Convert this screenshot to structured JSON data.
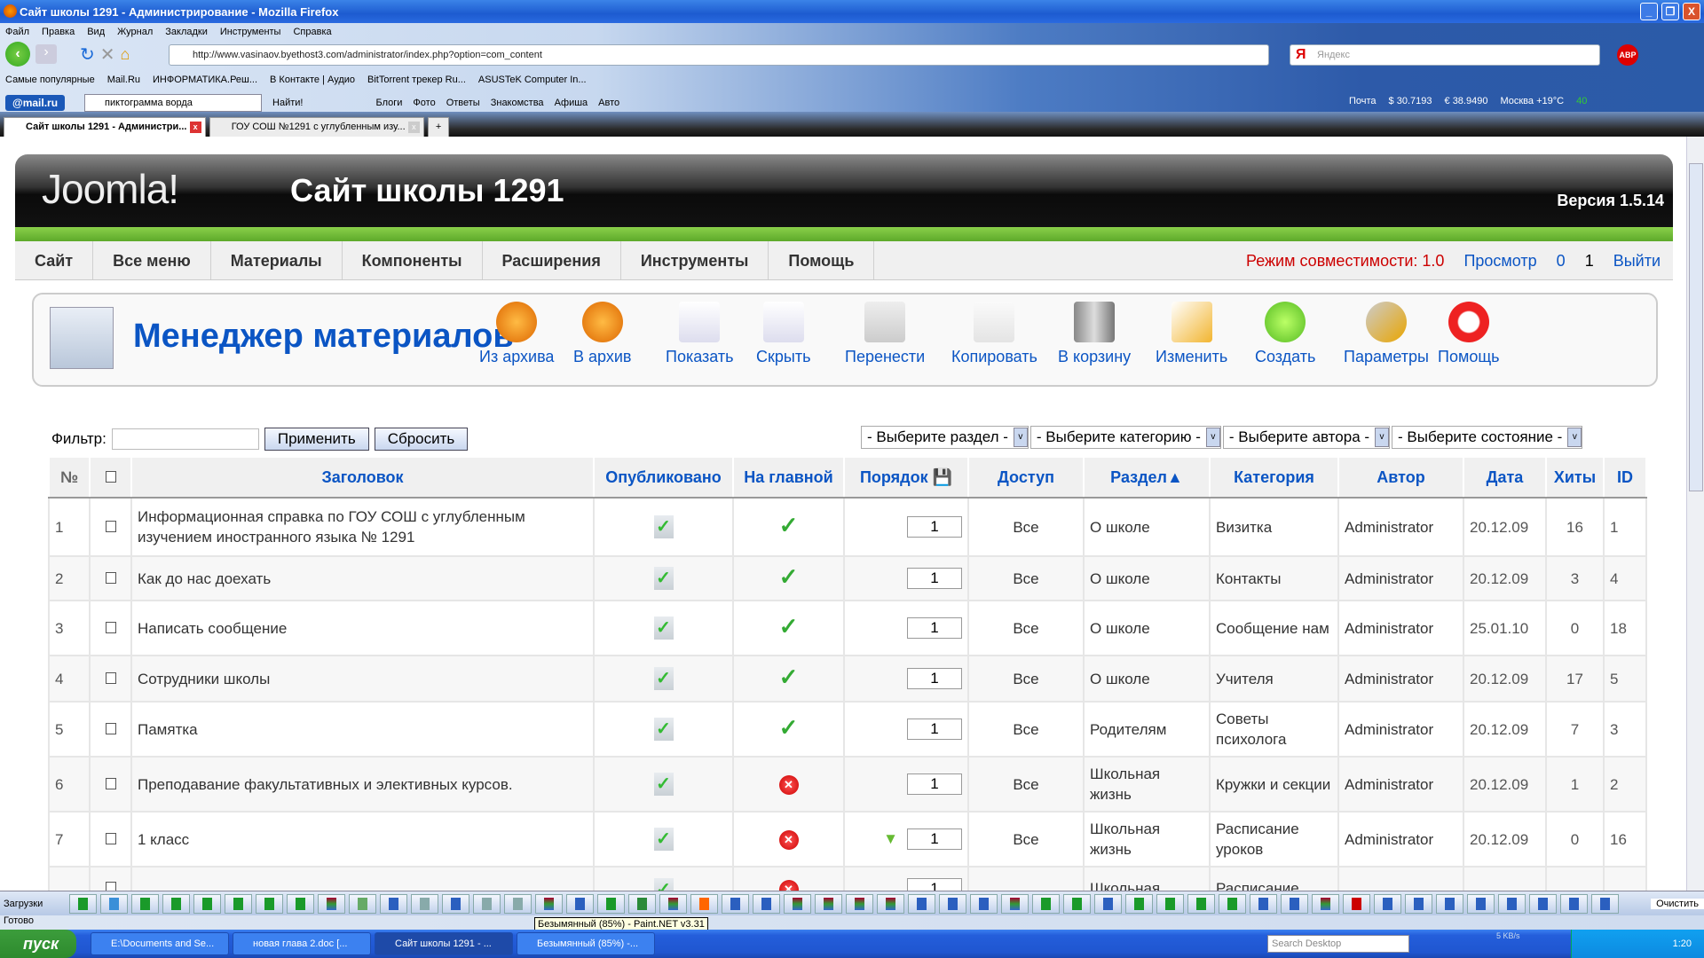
{
  "window": {
    "title": "Сайт школы 1291 - Администрирование - Mozilla Firefox",
    "min": "_",
    "max": "❐",
    "close": "X"
  },
  "menu": [
    "Файл",
    "Правка",
    "Вид",
    "Журнал",
    "Закладки",
    "Инструменты",
    "Справка"
  ],
  "nav": {
    "url": "http://www.vasinaov.byethost3.com/administrator/index.php?option=com_content",
    "search_placeholder": "Яндекс",
    "search_engine": "Я",
    "abp": "ABP"
  },
  "bookmarks": [
    "Самые популярные",
    "Mail.Ru",
    "ИНФОРМАТИКА.Реш...",
    "В Контакте | Аудио",
    "BitTorrent трекер Ru...",
    "ASUSTeK Computer In..."
  ],
  "mailbar": {
    "logo": "@mail.ru",
    "query": "пиктограмма ворда",
    "find": "Найти!",
    "links": [
      "Блоги",
      "Фото",
      "Ответы",
      "Знакомства",
      "Афиша",
      "Авто"
    ]
  },
  "infobar": {
    "mail": "Почта",
    "usd": "30.7193",
    "eur": "38.9490",
    "weather": "Москва +19°C",
    "traffic": "40"
  },
  "tabs": [
    {
      "label": "Сайт школы 1291 - Администри...",
      "active": true
    },
    {
      "label": "ГОУ СОШ №1291 с углубленным изу...",
      "active": false
    }
  ],
  "joomla": {
    "logo": "Joomla!",
    "site": "Сайт школы 1291",
    "version": "Версия 1.5.14",
    "menu": [
      "Сайт",
      "Все меню",
      "Материалы",
      "Компоненты",
      "Расширения",
      "Инструменты",
      "Помощь"
    ],
    "compat": "Режим совместимости: 1.0",
    "preview": "Просмотр",
    "messages": "0",
    "users": "1",
    "logout": "Выйти"
  },
  "toolbar": {
    "title": "Менеджер материалов",
    "buttons": [
      {
        "label": "Из архива",
        "icon": "unarchive-icon"
      },
      {
        "label": "В архив",
        "icon": "archive-icon"
      },
      {
        "label": "Показать",
        "icon": "publish-icon"
      },
      {
        "label": "Скрыть",
        "icon": "unpublish-icon"
      },
      {
        "label": "Перенести",
        "icon": "move-icon"
      },
      {
        "label": "Копировать",
        "icon": "copy-icon"
      },
      {
        "label": "В корзину",
        "icon": "trash-icon"
      },
      {
        "label": "Изменить",
        "icon": "edit-icon"
      },
      {
        "label": "Создать",
        "icon": "new-icon"
      },
      {
        "label": "Параметры",
        "icon": "params-icon"
      },
      {
        "label": "Помощь",
        "icon": "help-icon"
      }
    ]
  },
  "filter": {
    "label": "Фильтр:",
    "value": "",
    "apply": "Применить",
    "reset": "Сбросить",
    "selects": [
      "- Выберите раздел -",
      "- Выберите категорию -",
      "- Выберите автора -",
      "- Выберите состояние -"
    ]
  },
  "table": {
    "headers": [
      "№",
      "",
      "Заголовок",
      "Опубликовано",
      "На главной",
      "Порядок",
      "Доступ",
      "Раздел▲",
      "Категория",
      "Автор",
      "Дата",
      "Хиты",
      "ID"
    ],
    "rows": [
      {
        "n": "1",
        "title": "Информационная справка по ГОУ СОШ с углубленным изучением иностранного языка № 1291",
        "published": true,
        "front": true,
        "order": "1",
        "access": "Все",
        "section": "О школе",
        "category": "Визитка",
        "author": "Administrator",
        "date": "20.12.09",
        "hits": "16",
        "id": "1"
      },
      {
        "n": "2",
        "title": "Как до нас доехать",
        "published": true,
        "front": true,
        "order": "1",
        "access": "Все",
        "section": "О школе",
        "category": "Контакты",
        "author": "Administrator",
        "date": "20.12.09",
        "hits": "3",
        "id": "4"
      },
      {
        "n": "3",
        "title": "Написать сообщение",
        "published": true,
        "front": true,
        "order": "1",
        "access": "Все",
        "section": "О школе",
        "category": "Сообщение нам",
        "author": "Administrator",
        "date": "25.01.10",
        "hits": "0",
        "id": "18"
      },
      {
        "n": "4",
        "title": "Сотрудники школы",
        "published": true,
        "front": true,
        "order": "1",
        "access": "Все",
        "section": "О школе",
        "category": "Учителя",
        "author": "Administrator",
        "date": "20.12.09",
        "hits": "17",
        "id": "5"
      },
      {
        "n": "5",
        "title": "Памятка",
        "published": true,
        "front": true,
        "order": "1",
        "access": "Все",
        "section": "Родителям",
        "category": "Советы психолога",
        "author": "Administrator",
        "date": "20.12.09",
        "hits": "7",
        "id": "3"
      },
      {
        "n": "6",
        "title": "Преподавание факультативных и элективных курсов.",
        "published": true,
        "front": false,
        "order": "1",
        "access": "Все",
        "section": "Школьная жизнь",
        "category": "Кружки и секции",
        "author": "Administrator",
        "date": "20.12.09",
        "hits": "1",
        "id": "2"
      },
      {
        "n": "7",
        "title": "1 класс",
        "published": true,
        "front": false,
        "order": "1",
        "down": true,
        "access": "Все",
        "section": "Школьная жизнь",
        "category": "Расписание уроков",
        "author": "Administrator",
        "date": "20.12.09",
        "hits": "0",
        "id": "16"
      },
      {
        "n": "",
        "title": "",
        "published": true,
        "front": false,
        "order": "1",
        "access": "",
        "section": "Школьная",
        "category": "Расписание",
        "author": "",
        "date": "",
        "hits": "",
        "id": ""
      }
    ]
  },
  "downloads": {
    "label": "Загрузки",
    "clear": "Очистить",
    "items": [
      "utorrent",
      "app",
      "utorrent",
      "utorrent",
      "utorrent",
      "utorrent",
      "utorrent",
      "utorrent",
      "winrar",
      "audio",
      "word",
      "window",
      "word",
      "window",
      "window",
      "winrar",
      "word",
      "utorrent",
      "excel",
      "winrar",
      "mail",
      "word",
      "word",
      "winrar",
      "winrar",
      "winrar",
      "winrar",
      "word",
      "word",
      "word",
      "winrar",
      "utorrent",
      "utorrent",
      "word",
      "utorrent",
      "utorrent",
      "utorrent",
      "utorrent",
      "word",
      "word",
      "winrar",
      "ati",
      "word",
      "word",
      "word",
      "word",
      "word",
      "word",
      "word",
      "word"
    ]
  },
  "status": {
    "text": "Готово",
    "tooltip": "Безымянный (85%) - Paint.NET v3.31"
  },
  "taskbar": {
    "start": "пуск",
    "tasks": [
      {
        "label": "E:\\Documents and Se...",
        "active": false
      },
      {
        "label": "новая глава 2.doc [...",
        "active": false
      },
      {
        "label": "Сайт школы 1291 - ...",
        "active": true
      },
      {
        "label": "Безымянный (85%) -...",
        "active": false
      }
    ],
    "search": "Search Desktop",
    "speed": "5 KB/s",
    "clock": "1:20"
  },
  "colors": {
    "link": "#0b55c4",
    "green": "#18871c",
    "compat": "#cc0000"
  }
}
